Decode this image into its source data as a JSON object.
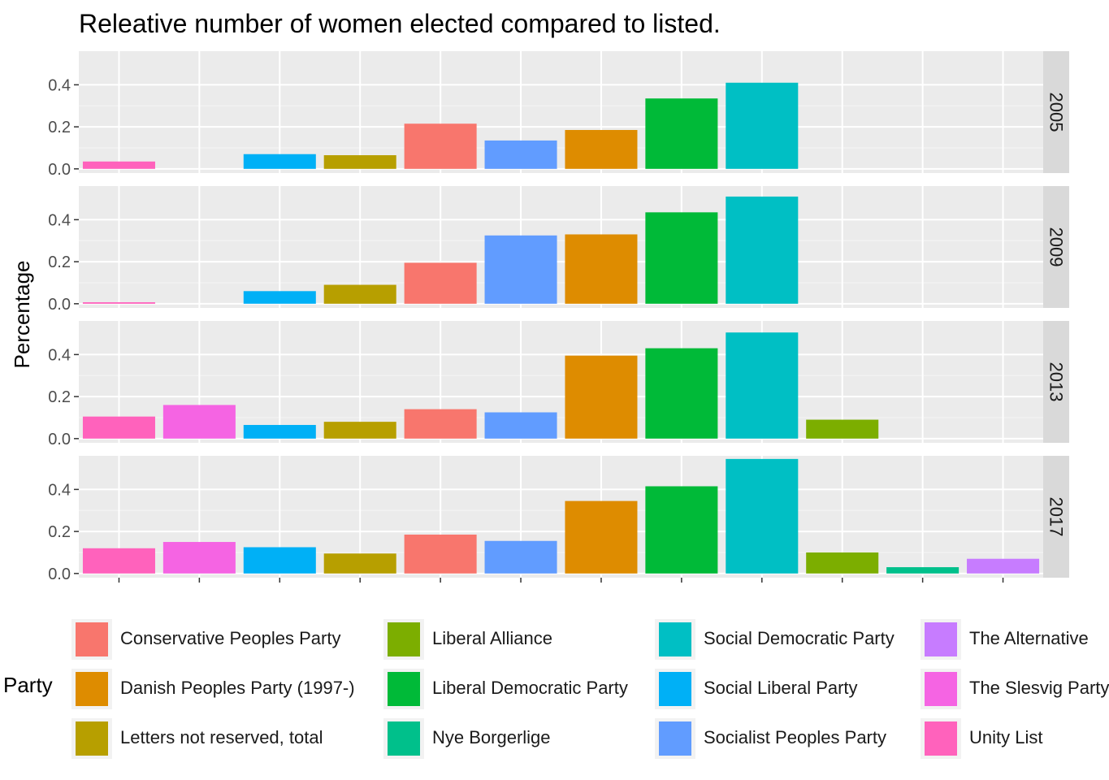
{
  "chart_data": {
    "type": "bar",
    "title": "Releative number of women elected compared to listed.",
    "xlabel": "",
    "ylabel": "Percentage",
    "ylim": [
      -0.02,
      0.56
    ],
    "y_ticks": [
      "0.0",
      "0.2",
      "0.4"
    ],
    "grid": true,
    "facets": [
      "2005",
      "2009",
      "2013",
      "2017"
    ],
    "categories": [
      "Unity List",
      "The Slesvig Party",
      "Social Liberal Party",
      "Letters not reserved, total",
      "Conservative Peoples Party",
      "Socialist Peoples Party",
      "Danish Peoples Party (1997-)",
      "Liberal Democratic Party",
      "Social Democratic Party",
      "Liberal Alliance",
      "Nye Borgerlige",
      "The Alternative"
    ],
    "series": [
      {
        "name": "2005",
        "values": [
          0.035,
          null,
          0.07,
          0.065,
          0.215,
          0.135,
          0.185,
          0.335,
          0.41,
          null,
          null,
          null
        ]
      },
      {
        "name": "2009",
        "values": [
          0.007,
          null,
          0.06,
          0.09,
          0.195,
          0.325,
          0.33,
          0.435,
          0.51,
          null,
          null,
          null
        ]
      },
      {
        "name": "2013",
        "values": [
          0.105,
          0.16,
          0.065,
          0.08,
          0.14,
          0.125,
          0.395,
          0.43,
          0.505,
          0.09,
          null,
          null
        ]
      },
      {
        "name": "2017",
        "values": [
          0.12,
          0.15,
          0.125,
          0.095,
          0.185,
          0.155,
          0.345,
          0.415,
          0.545,
          0.1,
          0.03,
          0.07
        ]
      }
    ],
    "colors": {
      "Unity List": "#FF62BC",
      "The Slesvig Party": "#F564E3",
      "Social Liberal Party": "#00B0F6",
      "Letters not reserved, total": "#B79F00",
      "Conservative Peoples Party": "#F8766D",
      "Socialist Peoples Party": "#619CFF",
      "Danish Peoples Party (1997-)": "#DE8C00",
      "Liberal Democratic Party": "#00BA38",
      "Social Democratic Party": "#00BFC4",
      "Liberal Alliance": "#7CAE00",
      "Nye Borgerlige": "#00C08B",
      "The Alternative": "#C77CFF"
    },
    "legend": {
      "title": "Party",
      "position": "bottom",
      "entries": [
        "Conservative Peoples Party",
        "Danish Peoples Party (1997-)",
        "Letters not reserved, total",
        "Liberal Alliance",
        "Liberal Democratic Party",
        "Nye Borgerlige",
        "Social Democratic Party",
        "Social Liberal Party",
        "Socialist Peoples Party",
        "The Alternative",
        "The Slesvig Party",
        "Unity List"
      ]
    }
  }
}
